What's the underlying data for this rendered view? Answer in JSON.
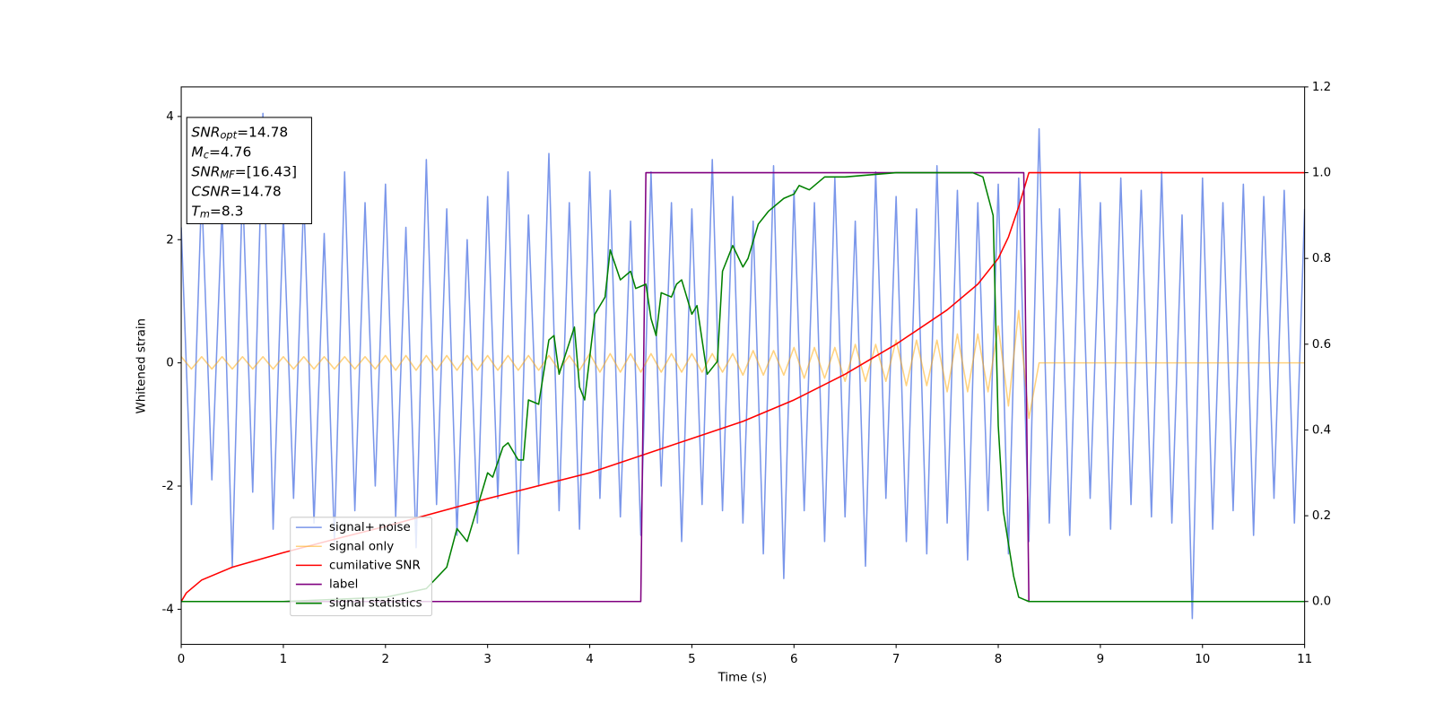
{
  "chart_data": {
    "type": "line",
    "xlabel": "Time (s)",
    "ylabel": "Whitened strain",
    "xlim": [
      0,
      11
    ],
    "ylim": [
      -4.57,
      4.48
    ],
    "y2lim": [
      -0.1,
      1.2
    ],
    "xticks": [
      0,
      1,
      2,
      3,
      4,
      5,
      6,
      7,
      8,
      9,
      10,
      11
    ],
    "yticks": [
      -4,
      -2,
      0,
      2,
      4
    ],
    "y2ticks": [
      {
        "value": 0,
        "label": "0.0"
      },
      {
        "value": 0.2,
        "label": "0.2"
      },
      {
        "value": 0.4,
        "label": "0.4"
      },
      {
        "value": 0.6,
        "label": "0.6"
      },
      {
        "value": 0.8,
        "label": "0.8"
      },
      {
        "value": 1,
        "label": "1.0"
      },
      {
        "value": 1.2,
        "label": "1.2"
      }
    ],
    "legend": "lower left",
    "annotation": [
      {
        "base": "SNR",
        "sub": "opt",
        "text": "=14.78"
      },
      {
        "base": "M",
        "sub": "c",
        "text": "=4.76"
      },
      {
        "base": "SNR",
        "sub": "MF",
        "text": "=[16.43]"
      },
      {
        "base": "CSNR",
        "text": "=14.78"
      },
      {
        "base": "T",
        "sub": "m",
        "text": "=8.3"
      }
    ],
    "x": [
      0,
      0.1,
      0.2,
      0.3,
      0.4,
      0.5,
      0.6,
      0.7,
      0.8,
      0.9,
      1,
      1.1,
      1.2,
      1.3,
      1.4,
      1.5,
      1.6,
      1.7,
      1.8,
      1.9,
      2,
      2.1,
      2.2,
      2.3,
      2.4,
      2.5,
      2.6,
      2.7,
      2.8,
      2.9,
      3,
      3.1,
      3.2,
      3.3,
      3.4,
      3.5,
      3.6,
      3.7,
      3.8,
      3.9,
      4,
      4.1,
      4.2,
      4.3,
      4.4,
      4.5,
      4.6,
      4.7,
      4.8,
      4.9,
      5,
      5.1,
      5.2,
      5.3,
      5.4,
      5.5,
      5.6,
      5.7,
      5.8,
      5.9,
      6,
      6.1,
      6.2,
      6.3,
      6.4,
      6.5,
      6.6,
      6.7,
      6.8,
      6.9,
      7,
      7.1,
      7.2,
      7.3,
      7.4,
      7.5,
      7.6,
      7.7,
      7.8,
      7.9,
      8,
      8.1,
      8.2,
      8.3,
      8.4,
      8.5,
      8.6,
      8.7,
      8.8,
      8.9,
      9,
      9.1,
      9.2,
      9.3,
      9.4,
      9.5,
      9.6,
      9.7,
      9.8,
      9.9,
      10,
      10.1,
      10.2,
      10.3,
      10.4,
      10.5,
      10.6,
      10.7,
      10.8,
      10.9,
      11
    ],
    "series": [
      {
        "name": "signal+ noise",
        "color": "#4169e1",
        "alpha": 0.7,
        "values": [
          2.2,
          -2.3,
          2.8,
          -1.9,
          2.5,
          -3.3,
          2.9,
          -2.1,
          4.05,
          -2.7,
          2.4,
          -2.2,
          2.7,
          -2.6,
          2.1,
          -2.9,
          3.1,
          -2.4,
          2.6,
          -2.0,
          2.9,
          -2.5,
          2.2,
          -3.0,
          3.3,
          -2.3,
          2.5,
          -2.8,
          2.0,
          -2.6,
          2.7,
          -2.2,
          3.1,
          -3.1,
          2.4,
          -2.0,
          3.4,
          -2.4,
          2.6,
          -2.7,
          3.1,
          -2.2,
          2.8,
          -2.5,
          2.3,
          -2.8,
          3.1,
          -2.0,
          2.6,
          -2.9,
          2.5,
          -2.3,
          3.3,
          -2.4,
          2.7,
          -2.6,
          2.3,
          -3.1,
          3.2,
          -3.5,
          2.8,
          -2.4,
          2.6,
          -2.9,
          3.0,
          -2.5,
          2.3,
          -3.3,
          3.1,
          -2.2,
          2.7,
          -2.9,
          2.5,
          -3.1,
          3.2,
          -2.6,
          2.8,
          -3.2,
          2.6,
          -2.4,
          2.9,
          -3.1,
          3.0,
          -2.9,
          3.8,
          -2.6,
          2.5,
          -2.8,
          3.1,
          -2.2,
          2.6,
          -2.7,
          3.0,
          -2.3,
          2.8,
          -2.5,
          3.1,
          -2.6,
          2.4,
          -4.15,
          3.0,
          -2.7,
          2.6,
          -2.4,
          2.9,
          -2.8,
          2.7,
          -2.2,
          2.8,
          -2.6,
          2.5
        ]
      },
      {
        "name": "signal only",
        "color": "#ffa500",
        "alpha": 0.5,
        "values": [
          0.1,
          -0.1,
          0.1,
          -0.1,
          0.1,
          -0.1,
          0.1,
          -0.1,
          0.1,
          -0.1,
          0.1,
          -0.1,
          0.1,
          -0.1,
          0.1,
          -0.1,
          0.1,
          -0.1,
          0.1,
          -0.1,
          0.12,
          -0.12,
          0.12,
          -0.12,
          0.12,
          -0.12,
          0.12,
          -0.12,
          0.12,
          -0.12,
          0.12,
          -0.12,
          0.12,
          -0.12,
          0.12,
          -0.12,
          0.12,
          -0.12,
          0.12,
          -0.12,
          0.15,
          -0.15,
          0.15,
          -0.15,
          0.15,
          -0.15,
          0.15,
          -0.15,
          0.15,
          -0.15,
          0.15,
          -0.15,
          0.15,
          -0.15,
          0.15,
          -0.2,
          0.2,
          -0.2,
          0.2,
          -0.2,
          0.25,
          -0.25,
          0.25,
          -0.25,
          0.25,
          -0.3,
          0.3,
          -0.3,
          0.3,
          -0.3,
          0.37,
          -0.37,
          0.37,
          -0.37,
          0.37,
          -0.47,
          0.47,
          -0.47,
          0.47,
          -0.47,
          0.6,
          -0.7,
          0.85,
          -0.9,
          0,
          0,
          0,
          0,
          0,
          0,
          0,
          0,
          0,
          0,
          0,
          0,
          0,
          0,
          0,
          0,
          0,
          0,
          0,
          0,
          0,
          0,
          0,
          0,
          0,
          0,
          0
        ]
      },
      {
        "name": "cumilative SNR",
        "color": "#ff0000",
        "axis": "y2",
        "x": [
          0,
          0.05,
          0.2,
          0.5,
          1,
          1.5,
          2,
          3,
          4,
          4.5,
          5,
          5.5,
          6,
          6.5,
          7,
          7.5,
          7.8,
          8,
          8.1,
          8.2,
          8.3,
          11
        ],
        "values": [
          0,
          0.02,
          0.05,
          0.08,
          0.114,
          0.145,
          0.175,
          0.24,
          0.3,
          0.34,
          0.38,
          0.42,
          0.47,
          0.53,
          0.6,
          0.68,
          0.74,
          0.8,
          0.85,
          0.92,
          1,
          1
        ]
      },
      {
        "name": "label",
        "color": "#800080",
        "axis": "y2",
        "x": [
          0,
          4.5,
          4.55,
          8.25,
          8.3,
          11
        ],
        "values": [
          0,
          0,
          1,
          1,
          0,
          0
        ]
      },
      {
        "name": "signal statistics",
        "color": "#008000",
        "axis": "y2",
        "x": [
          0,
          1,
          2,
          2.4,
          2.6,
          2.7,
          2.8,
          2.9,
          3,
          3.05,
          3.15,
          3.2,
          3.3,
          3.35,
          3.4,
          3.5,
          3.6,
          3.65,
          3.7,
          3.85,
          3.9,
          3.95,
          4.05,
          4.15,
          4.2,
          4.3,
          4.4,
          4.45,
          4.55,
          4.6,
          4.65,
          4.7,
          4.8,
          4.85,
          4.9,
          5,
          5.05,
          5.15,
          5.25,
          5.3,
          5.4,
          5.5,
          5.55,
          5.65,
          5.75,
          5.9,
          6,
          6.05,
          6.15,
          6.3,
          6.5,
          7,
          7.75,
          7.85,
          7.95,
          8,
          8.05,
          8.15,
          8.2,
          8.3,
          11
        ],
        "values": [
          0,
          0,
          0.01,
          0.03,
          0.08,
          0.17,
          0.14,
          0.22,
          0.3,
          0.29,
          0.36,
          0.37,
          0.33,
          0.33,
          0.47,
          0.46,
          0.61,
          0.62,
          0.53,
          0.64,
          0.5,
          0.47,
          0.67,
          0.71,
          0.82,
          0.75,
          0.77,
          0.73,
          0.74,
          0.66,
          0.62,
          0.72,
          0.71,
          0.74,
          0.75,
          0.67,
          0.69,
          0.53,
          0.56,
          0.77,
          0.83,
          0.78,
          0.8,
          0.88,
          0.91,
          0.94,
          0.95,
          0.97,
          0.96,
          0.99,
          0.99,
          1,
          1,
          0.99,
          0.9,
          0.41,
          0.21,
          0.06,
          0.01,
          0,
          0
        ]
      }
    ]
  }
}
